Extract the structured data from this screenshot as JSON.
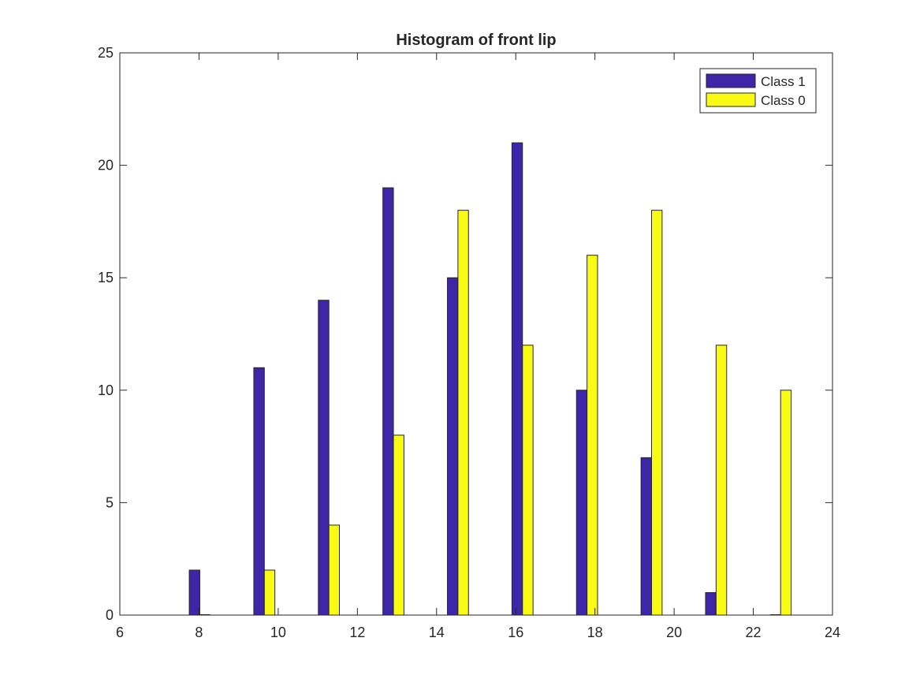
{
  "chart_data": {
    "type": "bar",
    "title": "Histogram of front lip",
    "xlabel": "",
    "ylabel": "",
    "xlim": [
      6,
      24
    ],
    "ylim": [
      0,
      25
    ],
    "xticks": [
      6,
      8,
      10,
      12,
      14,
      16,
      18,
      20,
      22,
      24
    ],
    "yticks": [
      0,
      5,
      10,
      15,
      20,
      25
    ],
    "x": [
      8.02,
      9.65,
      11.28,
      12.91,
      14.54,
      16.17,
      17.8,
      19.43,
      21.06,
      22.69
    ],
    "series": [
      {
        "name": "Class 1",
        "color": "#3d26a8",
        "values": [
          2,
          11,
          14,
          19,
          15,
          21,
          10,
          7,
          1,
          0
        ]
      },
      {
        "name": "Class 0",
        "color": "#f9fb15",
        "values": [
          0,
          2,
          4,
          8,
          18,
          12,
          16,
          18,
          12,
          10
        ]
      }
    ],
    "legend": "top-right",
    "grid": false
  }
}
